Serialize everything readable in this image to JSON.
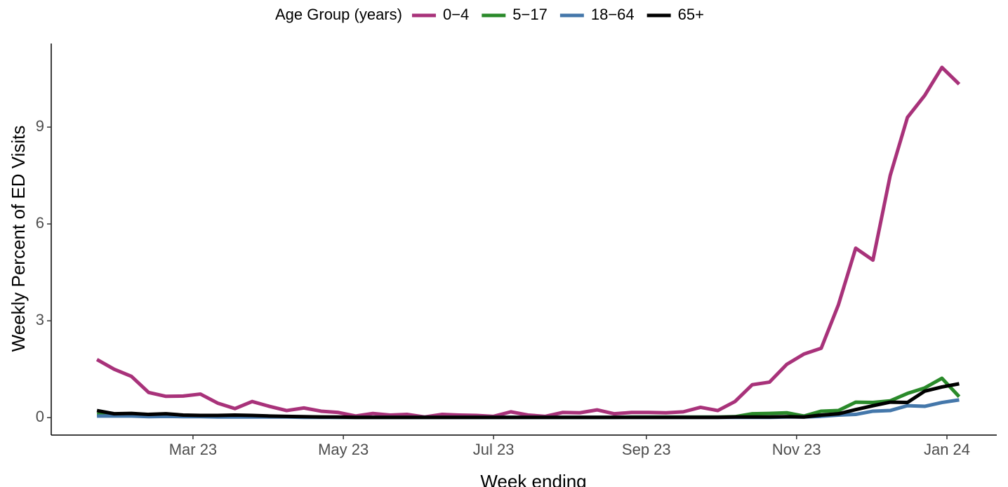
{
  "chart_data": {
    "type": "line",
    "legend_title": "Age Group (years)",
    "xlabel": "Week ending",
    "ylabel": "Weekly Percent of ED Visits",
    "categories": [
      null,
      null,
      null,
      null,
      null,
      null,
      null,
      null,
      null,
      null,
      null,
      null,
      null,
      null,
      null,
      null,
      null,
      null,
      null,
      null,
      null,
      null,
      null,
      null,
      null,
      null,
      null,
      null,
      null,
      null,
      null,
      null,
      null,
      null,
      null,
      null,
      null,
      null,
      null,
      null,
      null,
      null,
      null,
      null,
      null,
      null,
      null,
      null,
      null,
      null,
      null
    ],
    "xlim": [
      -2.65,
      52.18
    ],
    "xticks": [
      {
        "value": 5.57,
        "label": "Mar 23"
      },
      {
        "value": 14.29,
        "label": "May 23"
      },
      {
        "value": 23.0,
        "label": "Jul 23"
      },
      {
        "value": 31.86,
        "label": "Sep 23"
      },
      {
        "value": 40.57,
        "label": "Nov 23"
      },
      {
        "value": 49.29,
        "label": "Jan 24"
      }
    ],
    "ylim": [
      -0.54,
      11.59
    ],
    "yticks": [
      0,
      3,
      6,
      9
    ],
    "legend": "top",
    "series": [
      {
        "name": "0−4",
        "color": "#a8327a",
        "values": [
          1.8,
          1.5,
          1.28,
          0.78,
          0.66,
          0.67,
          0.73,
          0.45,
          0.28,
          0.5,
          0.35,
          0.22,
          0.3,
          0.2,
          0.16,
          0.05,
          0.13,
          0.08,
          0.1,
          0.02,
          0.1,
          0.08,
          0.07,
          0.04,
          0.18,
          0.08,
          0.04,
          0.16,
          0.15,
          0.24,
          0.12,
          0.16,
          0.16,
          0.15,
          0.18,
          0.32,
          0.22,
          0.5,
          1.02,
          1.1,
          1.65,
          1.97,
          2.15,
          3.5,
          5.25,
          4.88,
          7.5,
          9.3,
          9.98,
          10.85,
          10.33
        ]
      },
      {
        "name": "5−17",
        "color": "#2a8a2a",
        "values": [
          0.1,
          0.1,
          0.1,
          0.06,
          0.08,
          0.05,
          0.05,
          0.04,
          0.05,
          0.05,
          0.03,
          0.03,
          0.02,
          0.02,
          0.01,
          0.01,
          0.01,
          0.01,
          0.01,
          0.01,
          0.01,
          0.01,
          0.01,
          0.01,
          0.01,
          0.01,
          0.01,
          0.01,
          0.01,
          0.01,
          0.01,
          0.02,
          0.02,
          0.02,
          0.02,
          0.02,
          0.02,
          0.03,
          0.12,
          0.13,
          0.15,
          0.05,
          0.2,
          0.22,
          0.48,
          0.47,
          0.52,
          0.75,
          0.92,
          1.22,
          0.65
        ]
      },
      {
        "name": "18−64",
        "color": "#4477aa",
        "values": [
          0.05,
          0.05,
          0.05,
          0.03,
          0.04,
          0.03,
          0.03,
          0.02,
          0.02,
          0.02,
          0.02,
          0.02,
          0.01,
          0.01,
          0.01,
          0.01,
          0.01,
          0.01,
          0.01,
          0.01,
          0.01,
          0.01,
          0.01,
          0.01,
          0.01,
          0.01,
          0.01,
          0.01,
          0.01,
          0.01,
          0.01,
          0.01,
          0.01,
          0.01,
          0.01,
          0.01,
          0.01,
          0.01,
          0.01,
          0.01,
          0.02,
          0.02,
          0.04,
          0.08,
          0.1,
          0.2,
          0.22,
          0.37,
          0.35,
          0.47,
          0.55
        ]
      },
      {
        "name": "65+",
        "color": "#000000",
        "values": [
          0.22,
          0.12,
          0.13,
          0.1,
          0.12,
          0.08,
          0.07,
          0.07,
          0.08,
          0.07,
          0.05,
          0.04,
          0.03,
          0.02,
          0.02,
          0.01,
          0.01,
          0.01,
          0.01,
          0.01,
          0.01,
          0.01,
          0.01,
          0.01,
          0.01,
          0.01,
          0.01,
          0.01,
          0.01,
          0.01,
          0.01,
          0.01,
          0.01,
          0.01,
          0.01,
          0.01,
          0.01,
          0.02,
          0.02,
          0.02,
          0.03,
          0.02,
          0.08,
          0.12,
          0.25,
          0.37,
          0.48,
          0.47,
          0.82,
          0.95,
          1.05
        ]
      }
    ]
  }
}
